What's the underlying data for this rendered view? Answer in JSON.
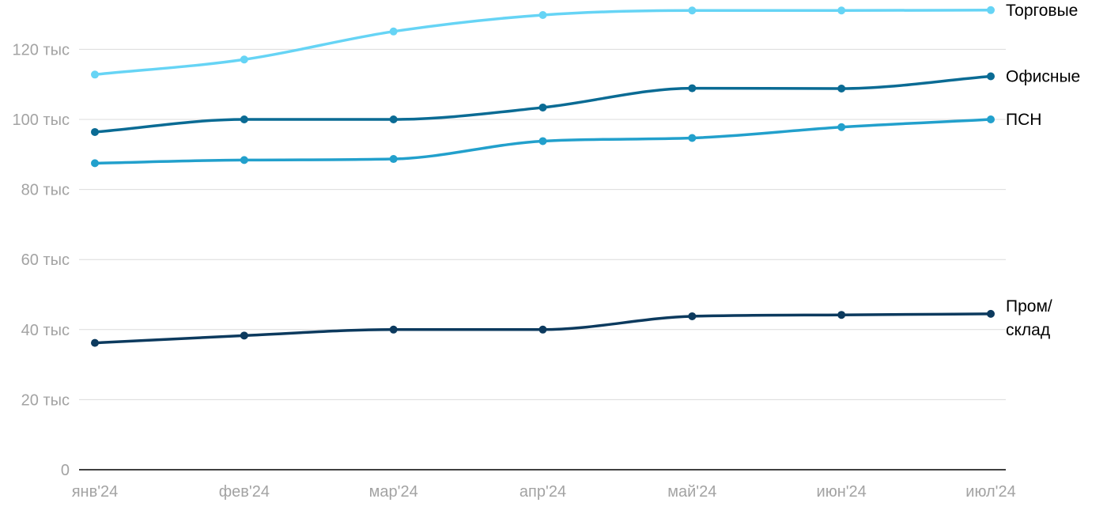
{
  "chart_data": {
    "type": "line",
    "categories": [
      "янв'24",
      "фев'24",
      "мар'24",
      "апр'24",
      "май'24",
      "июн'24",
      "июл'24"
    ],
    "y_ticks": [
      "0",
      "20 тыс",
      "40 тыс",
      "60 тыс",
      "80 тыс",
      "100 тыс",
      "120 тыс"
    ],
    "ylim": [
      0,
      131000
    ],
    "grid": true,
    "legend": "none",
    "series": [
      {
        "name": "Торговые",
        "label_lines": [
          "Торговые"
        ],
        "color": "#66d4f5",
        "values": [
          112800,
          117100,
          125100,
          129800,
          131100,
          131100,
          131200
        ]
      },
      {
        "name": "Офисные",
        "label_lines": [
          "Офисные"
        ],
        "color": "#0a6b94",
        "values": [
          96400,
          100000,
          100000,
          103400,
          108900,
          108800,
          112300
        ]
      },
      {
        "name": "ПСН",
        "label_lines": [
          "ПСН"
        ],
        "color": "#22a0cc",
        "values": [
          87500,
          88400,
          88700,
          93800,
          94700,
          97800,
          100000
        ]
      },
      {
        "name": "Пром/склад",
        "label_lines": [
          "Пром/",
          "склад"
        ],
        "color": "#0c3a5e",
        "values": [
          36200,
          38300,
          40000,
          40000,
          43800,
          44200,
          44500
        ]
      }
    ]
  }
}
